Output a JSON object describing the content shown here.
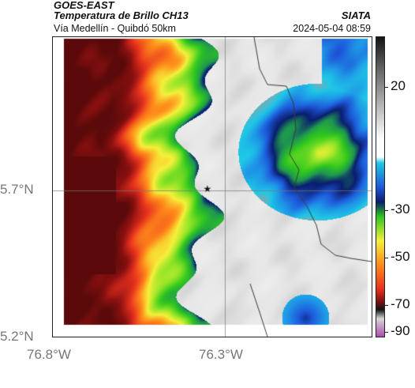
{
  "header": {
    "satellite": "GOES-EAST",
    "product": "Temperatura de Brillo CH13",
    "route": "Vía Medellín - Quibdó 50km",
    "organization": "SIATA",
    "timestamp": "2024-05-04 08:59"
  },
  "axes": {
    "lat_labels": [
      "5.7°N",
      "5.2°N"
    ],
    "lon_labels": [
      "76.8°W",
      "76.3°W"
    ]
  },
  "colorbar": {
    "labels": [
      "20",
      "-30",
      "-50",
      "-70",
      "-90"
    ],
    "unit_hint": "brightness temperature (°C)"
  },
  "marker": {
    "symbol": "★",
    "name": "Quibdó"
  },
  "colors": {
    "cold_magenta": "#b04ab0",
    "black": "#141414",
    "dark_red": "#8a1010",
    "red": "#e8321e",
    "orange": "#ff8c1a",
    "yellow": "#f5f03a",
    "green": "#30c81e",
    "cyan": "#1ec8e6",
    "blue": "#1e5adc",
    "navy": "#0a1e6e",
    "light_gray": "#e6e6e6",
    "gray": "#a0a0a0"
  }
}
